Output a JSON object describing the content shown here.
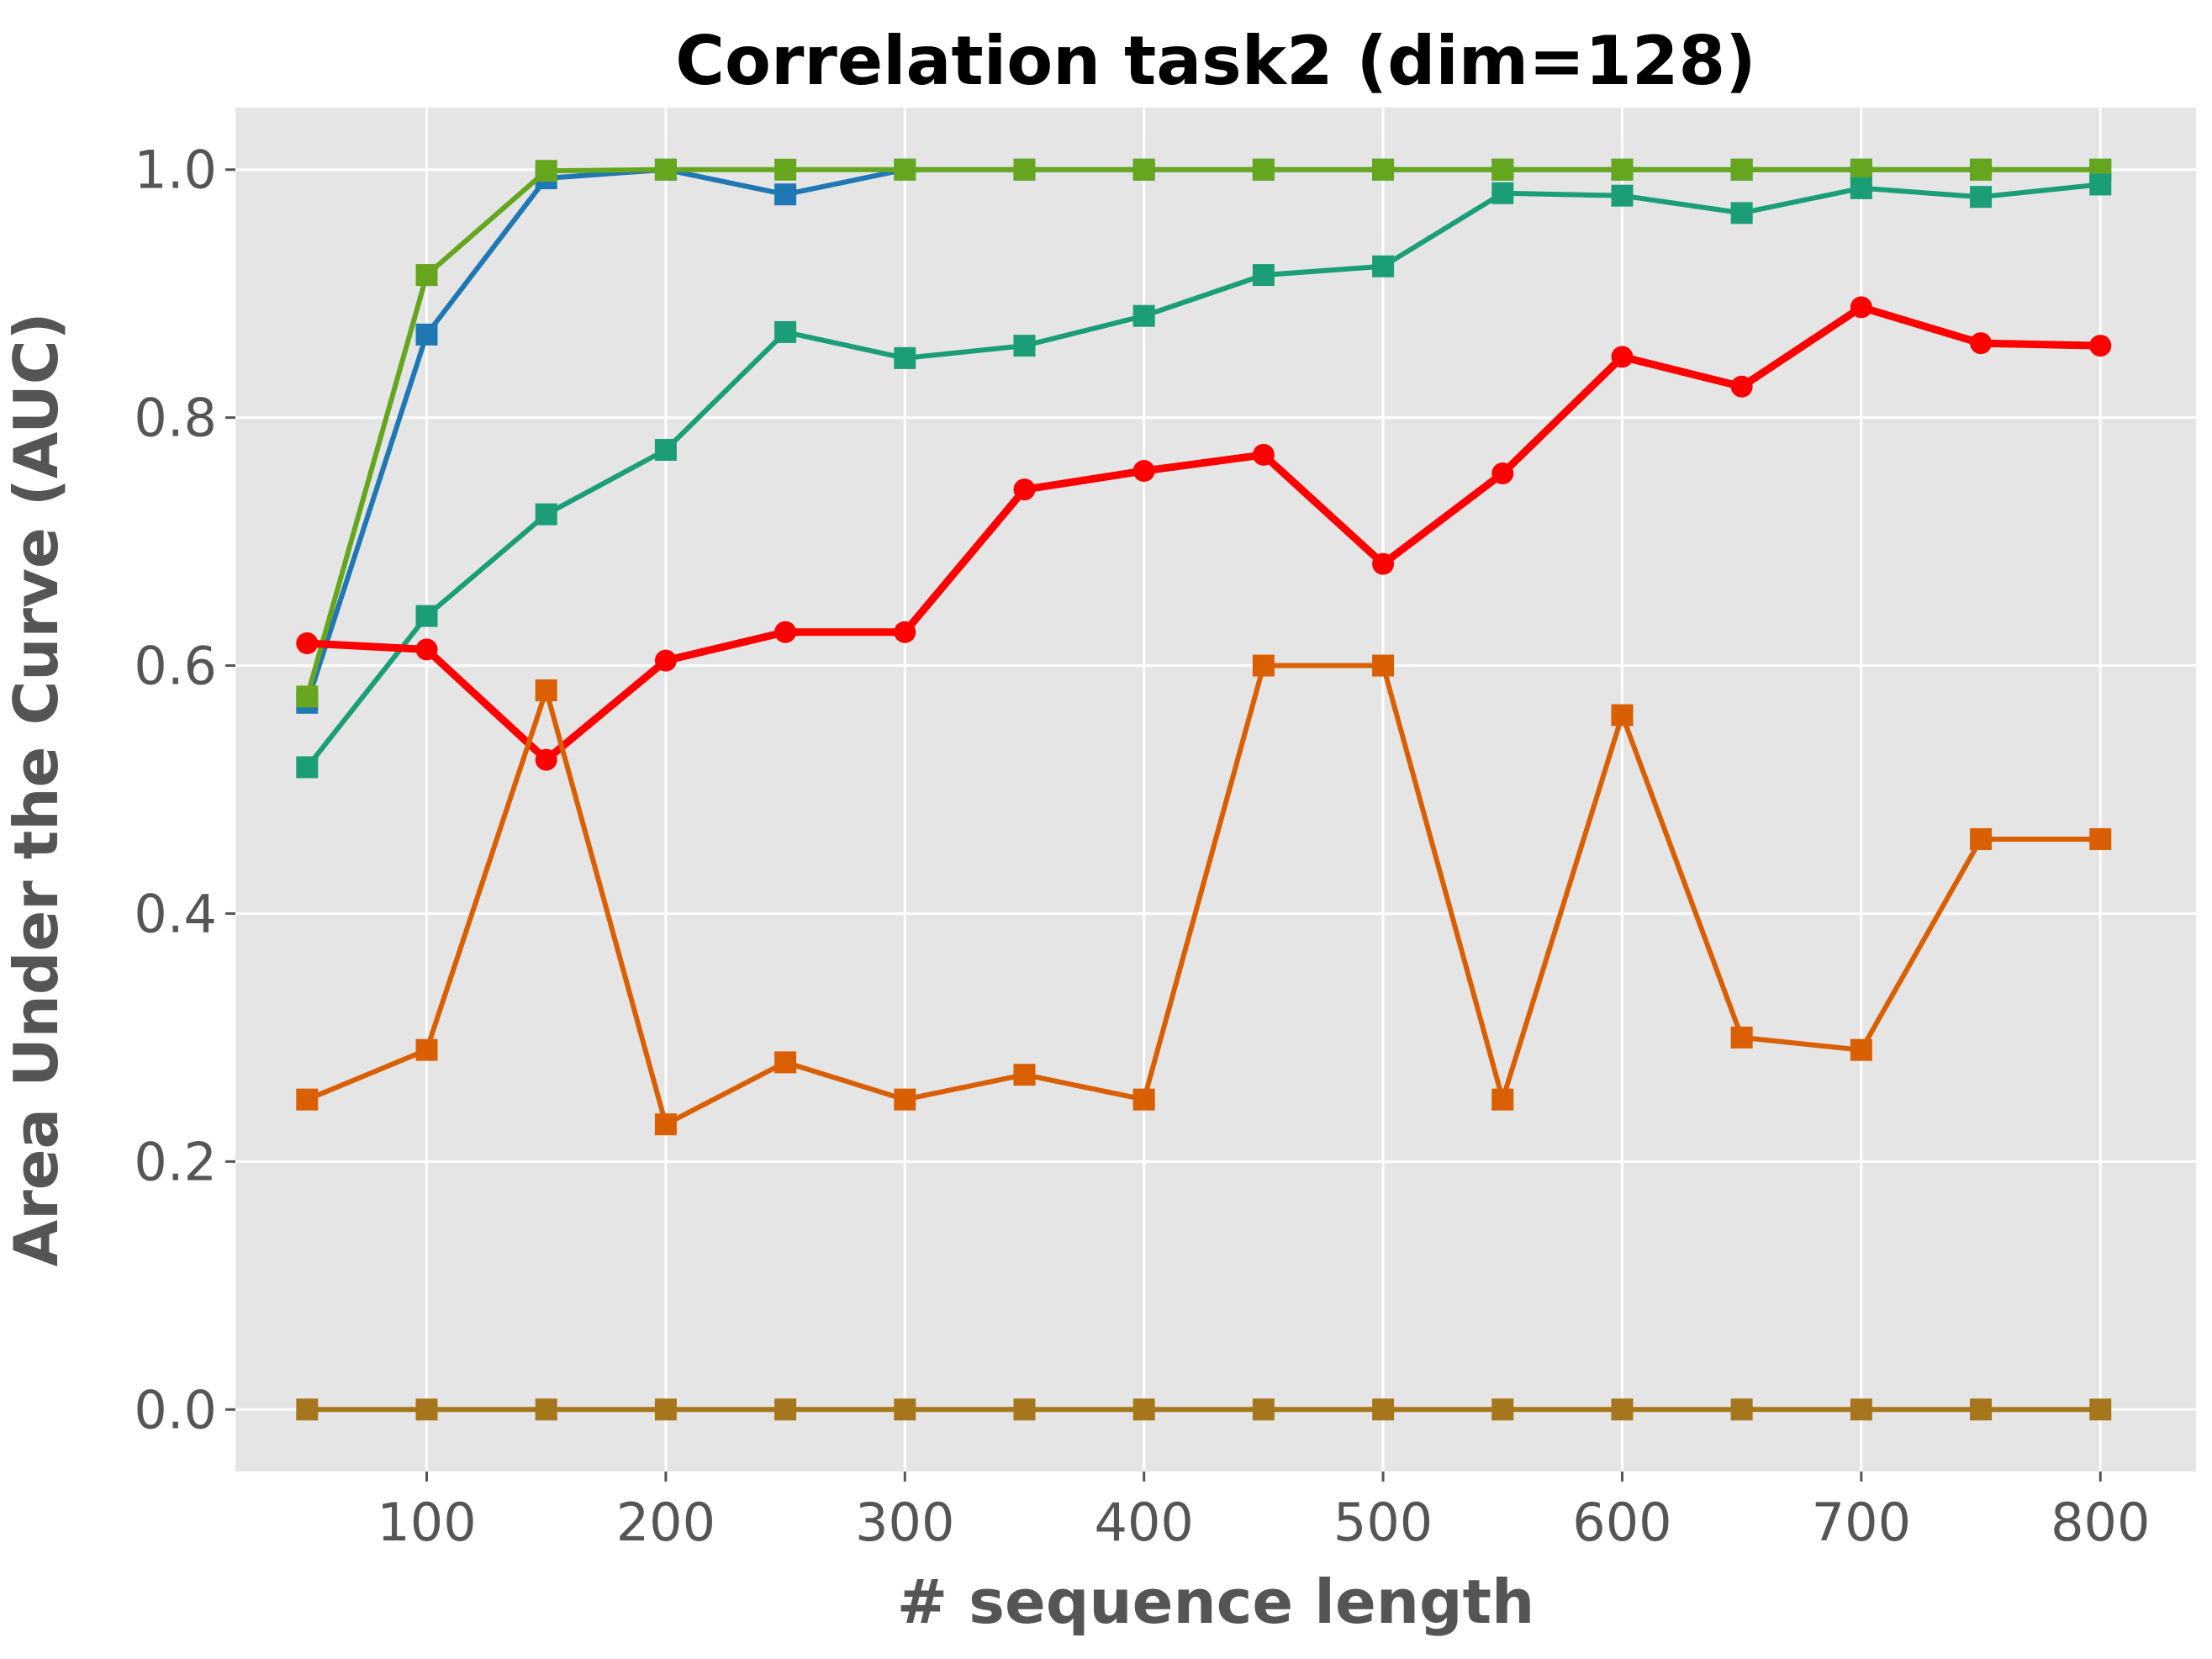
{
  "chart_data": {
    "type": "line",
    "title": "Correlation task2 (dim=128)",
    "xlabel": "# sequence length",
    "ylabel": "Area Under the Curve (AUC)",
    "xlim": [
      20,
      840
    ],
    "ylim": [
      -0.05,
      1.05
    ],
    "xticks": [
      100,
      200,
      300,
      400,
      500,
      600,
      700,
      800
    ],
    "yticks": [
      0.0,
      0.2,
      0.4,
      0.6,
      0.8,
      1.0
    ],
    "xtick_labels": [
      "100",
      "200",
      "300",
      "400",
      "500",
      "600",
      "700",
      "800"
    ],
    "ytick_labels": [
      "0.0",
      "0.2",
      "0.4",
      "0.6",
      "0.8",
      "1.0"
    ],
    "grid": true,
    "background": "#e5e5e5",
    "x": [
      50,
      100,
      150,
      200,
      250,
      300,
      350,
      400,
      450,
      500,
      550,
      600,
      650,
      700,
      750,
      800
    ],
    "series": [
      {
        "color": "#1f77b4",
        "marker": "square",
        "values": [
          0.57,
          0.867,
          0.993,
          1.0,
          0.98,
          1.0,
          1.0,
          1.0,
          1.0,
          1.0,
          1.0,
          1.0,
          1.0,
          1.0,
          1.0,
          1.0
        ]
      },
      {
        "color": "#66a61e",
        "marker": "square",
        "values": [
          0.575,
          0.915,
          0.999,
          1.0,
          1.0,
          1.0,
          1.0,
          1.0,
          1.0,
          1.0,
          1.0,
          1.0,
          1.0,
          1.0,
          1.0,
          1.0
        ]
      },
      {
        "color": "#1b9e77",
        "marker": "square",
        "values": [
          0.518,
          0.64,
          0.722,
          0.774,
          0.869,
          0.848,
          0.858,
          0.882,
          0.915,
          0.922,
          0.981,
          0.979,
          0.965,
          0.985,
          0.978,
          0.988
        ]
      },
      {
        "color": "#ff0000",
        "marker": "circle",
        "line_weight": "thick",
        "values": [
          0.618,
          0.613,
          0.524,
          0.604,
          0.627,
          0.627,
          0.742,
          0.757,
          0.77,
          0.682,
          0.755,
          0.849,
          0.825,
          0.889,
          0.86,
          0.858
        ]
      },
      {
        "color": "#d95f02",
        "marker": "square",
        "values": [
          0.25,
          0.29,
          0.58,
          0.23,
          0.28,
          0.25,
          0.27,
          0.25,
          0.6,
          0.6,
          0.25,
          0.56,
          0.3,
          0.29,
          0.46,
          0.46
        ]
      },
      {
        "color": "#a6761d",
        "marker": "square",
        "values": [
          0.0,
          0.0,
          0.0,
          0.0,
          0.0,
          0.0,
          0.0,
          0.0,
          0.0,
          0.0,
          0.0,
          0.0,
          0.0,
          0.0,
          0.0,
          0.0
        ]
      }
    ]
  }
}
